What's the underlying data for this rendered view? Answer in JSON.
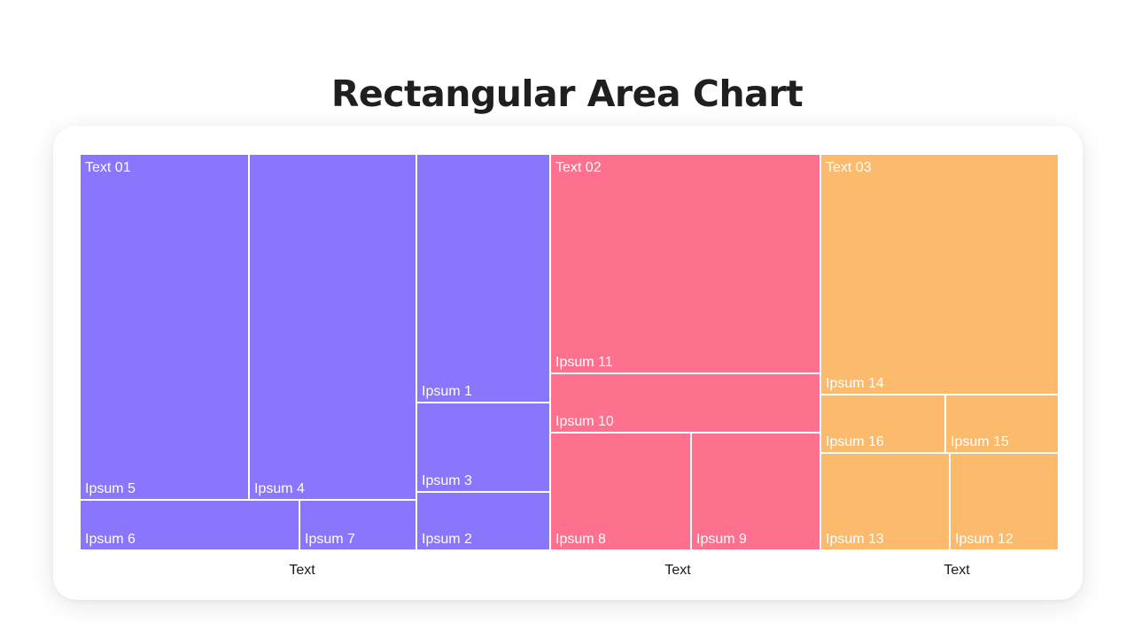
{
  "title": "Rectangular Area Chart",
  "chart_data": {
    "type": "treemap",
    "title": "Rectangular Area Chart",
    "colors": {
      "Text 01": "#8876fc",
      "Text 02": "#fe718e",
      "Text 03": "#fcba6c"
    },
    "groups": [
      {
        "name": "Text 01",
        "axis_label": "Text",
        "color": "#8876fc",
        "items": [
          {
            "label": "Ipsum 5",
            "value": 74
          },
          {
            "label": "Ipsum 4",
            "value": 73
          },
          {
            "label": "Ipsum 1",
            "value": 42
          },
          {
            "label": "Ipsum 3",
            "value": 15
          },
          {
            "label": "Ipsum 2",
            "value": 10
          },
          {
            "label": "Ipsum 6",
            "value": 14
          },
          {
            "label": "Ipsum 7",
            "value": 8
          }
        ]
      },
      {
        "name": "Text 02",
        "axis_label": "Text",
        "color": "#fe718e",
        "items": [
          {
            "label": "Ipsum 11",
            "value": 75
          },
          {
            "label": "Ipsum 10",
            "value": 20
          },
          {
            "label": "Ipsum 8",
            "value": 21
          },
          {
            "label": "Ipsum 9",
            "value": 19
          }
        ]
      },
      {
        "name": "Text 03",
        "axis_label": "Text",
        "color": "#fcba6c",
        "items": [
          {
            "label": "Ipsum 14",
            "value": 72
          },
          {
            "label": "Ipsum 16",
            "value": 9
          },
          {
            "label": "Ipsum 15",
            "value": 8
          },
          {
            "label": "Ipsum 13",
            "value": 15
          },
          {
            "label": "Ipsum 12",
            "value": 13
          }
        ]
      }
    ]
  }
}
